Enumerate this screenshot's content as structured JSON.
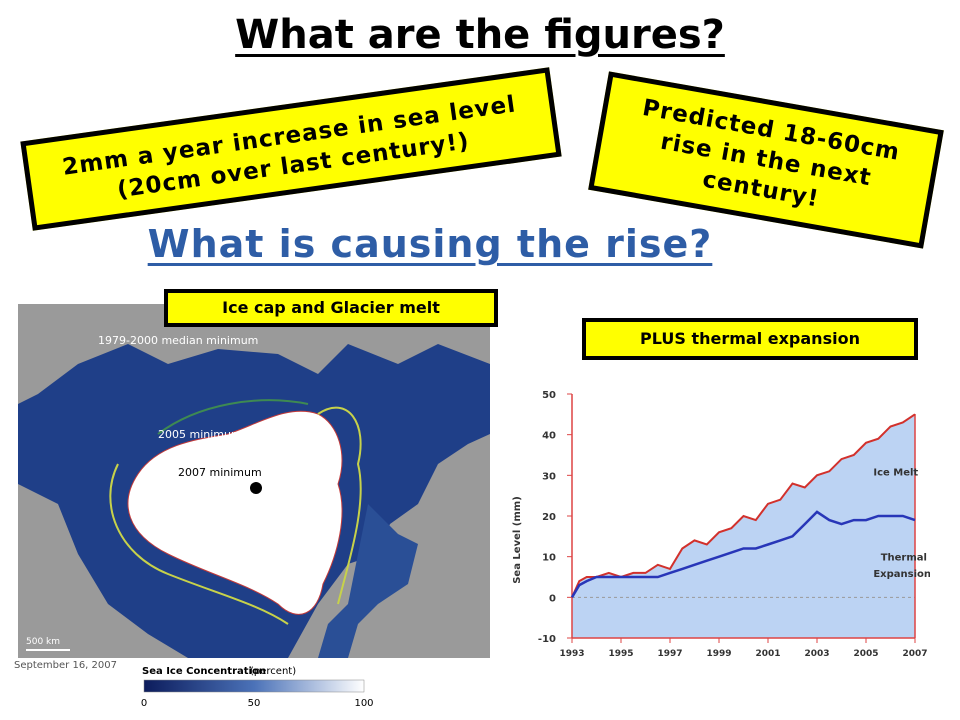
{
  "title": "What are the figures?",
  "box_left": {
    "line1": "2mm a year increase in sea level",
    "line2": "(20cm over last century!)"
  },
  "box_right": {
    "line1": "Predicted 18-60cm",
    "line2": "rise in the next",
    "line3": "century!"
  },
  "subtitle": "What is causing the rise?",
  "label_map": "Ice cap and Glacier  melt",
  "label_graph": "PLUS thermal expansion",
  "map": {
    "legend_1979": "1979-2000 median minimum",
    "legend_2005": "2005 minimum",
    "legend_2007": "2007 minimum",
    "scale": "500 km",
    "date": "September 16, 2007",
    "bar_title": "Sea Ice Concentration",
    "bar_unit": "(percent)",
    "bar_ticks": [
      "0",
      "50",
      "100"
    ]
  },
  "chart_data": {
    "type": "area",
    "ylabel": "Sea Level (mm)",
    "ylim": [
      -10,
      50
    ],
    "yticks": [
      "50",
      "40",
      "30",
      "20",
      "10",
      "0",
      "-10"
    ],
    "xticks": [
      "1993",
      "1995",
      "1997",
      "1999",
      "2001",
      "2003",
      "2005",
      "2007"
    ],
    "annotations": [
      "Ice Melt",
      "Thermal",
      "Expansion"
    ],
    "series": [
      {
        "color": "#d2312c",
        "x": [
          1993.0,
          1993.3,
          1993.6,
          1994.0,
          1994.5,
          1995.0,
          1995.5,
          1996.0,
          1996.5,
          1997.0,
          1997.5,
          1998.0,
          1998.5,
          1999.0,
          1999.5,
          2000.0,
          2000.5,
          2001.0,
          2001.5,
          2002.0,
          2002.5,
          2003.0,
          2003.5,
          2004.0,
          2004.5,
          2005.0,
          2005.5,
          2006.0,
          2006.5,
          2007.0
        ],
        "y": [
          0,
          4,
          5,
          5,
          6,
          5,
          6,
          6,
          8,
          7,
          12,
          14,
          13,
          16,
          17,
          20,
          19,
          23,
          24,
          28,
          27,
          30,
          31,
          34,
          35,
          38,
          39,
          42,
          43,
          45
        ]
      },
      {
        "color": "#2836b8",
        "x": [
          1993.0,
          1993.3,
          1993.6,
          1994.0,
          1994.5,
          1995.0,
          1995.5,
          1996.0,
          1996.5,
          1997.0,
          1997.5,
          1998.0,
          1998.5,
          1999.0,
          1999.5,
          2000.0,
          2000.5,
          2001.0,
          2001.5,
          2002.0,
          2002.5,
          2003.0,
          2003.5,
          2004.0,
          2004.5,
          2005.0,
          2005.5,
          2006.0,
          2006.5,
          2007.0
        ],
        "y": [
          0,
          3,
          4,
          5,
          5,
          5,
          5,
          5,
          5,
          6,
          7,
          8,
          9,
          10,
          11,
          12,
          12,
          13,
          14,
          15,
          18,
          21,
          19,
          18,
          19,
          19,
          20,
          20,
          20,
          19
        ]
      }
    ]
  }
}
